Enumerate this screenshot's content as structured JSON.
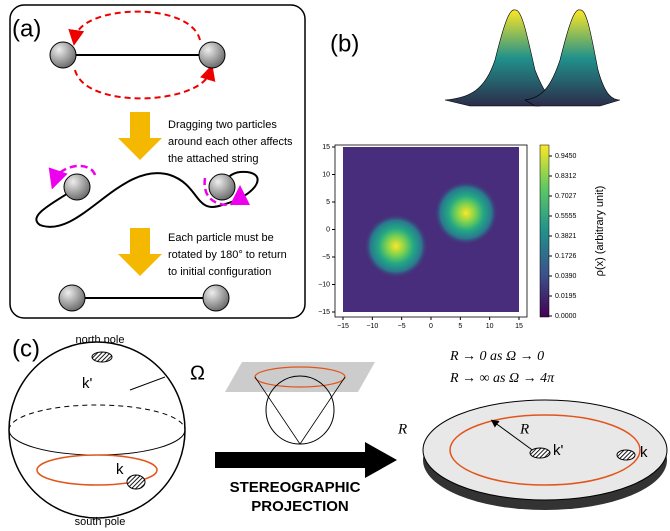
{
  "panel_a": {
    "label": "(a)",
    "step1_text": [
      "Dragging two particles",
      "around each other affects",
      "the attached string"
    ],
    "step2_text": [
      "Each particle must be",
      "rotated by 180° to return",
      "to initial configuration"
    ]
  },
  "panel_b": {
    "label": "(b)",
    "xticks": [
      "−15",
      "−10",
      "−5",
      "0",
      "5",
      "10",
      "15"
    ],
    "yticks": [
      "15",
      "10",
      "5",
      "0",
      "−5",
      "−10",
      "−15"
    ],
    "colorbar_ticks": [
      "0.9450",
      "0.8312",
      "0.7027",
      "0.5555",
      "0.3821",
      "0.1726",
      "0.0390",
      "0.0195",
      "0.0000"
    ],
    "colorbar_label": "ρ(x) (arbitrary unit)"
  },
  "panel_c": {
    "label": "(c)",
    "north_pole": "north pole",
    "south_pole": "south pole",
    "k_prime": "k'",
    "k": "k",
    "omega": "Ω",
    "projection": [
      "STEREOGRAPHIC",
      "PROJECTION"
    ],
    "radius": "R",
    "limits": [
      "R → 0 as Ω → 0",
      "R → ∞ as Ω → 4π"
    ]
  }
}
